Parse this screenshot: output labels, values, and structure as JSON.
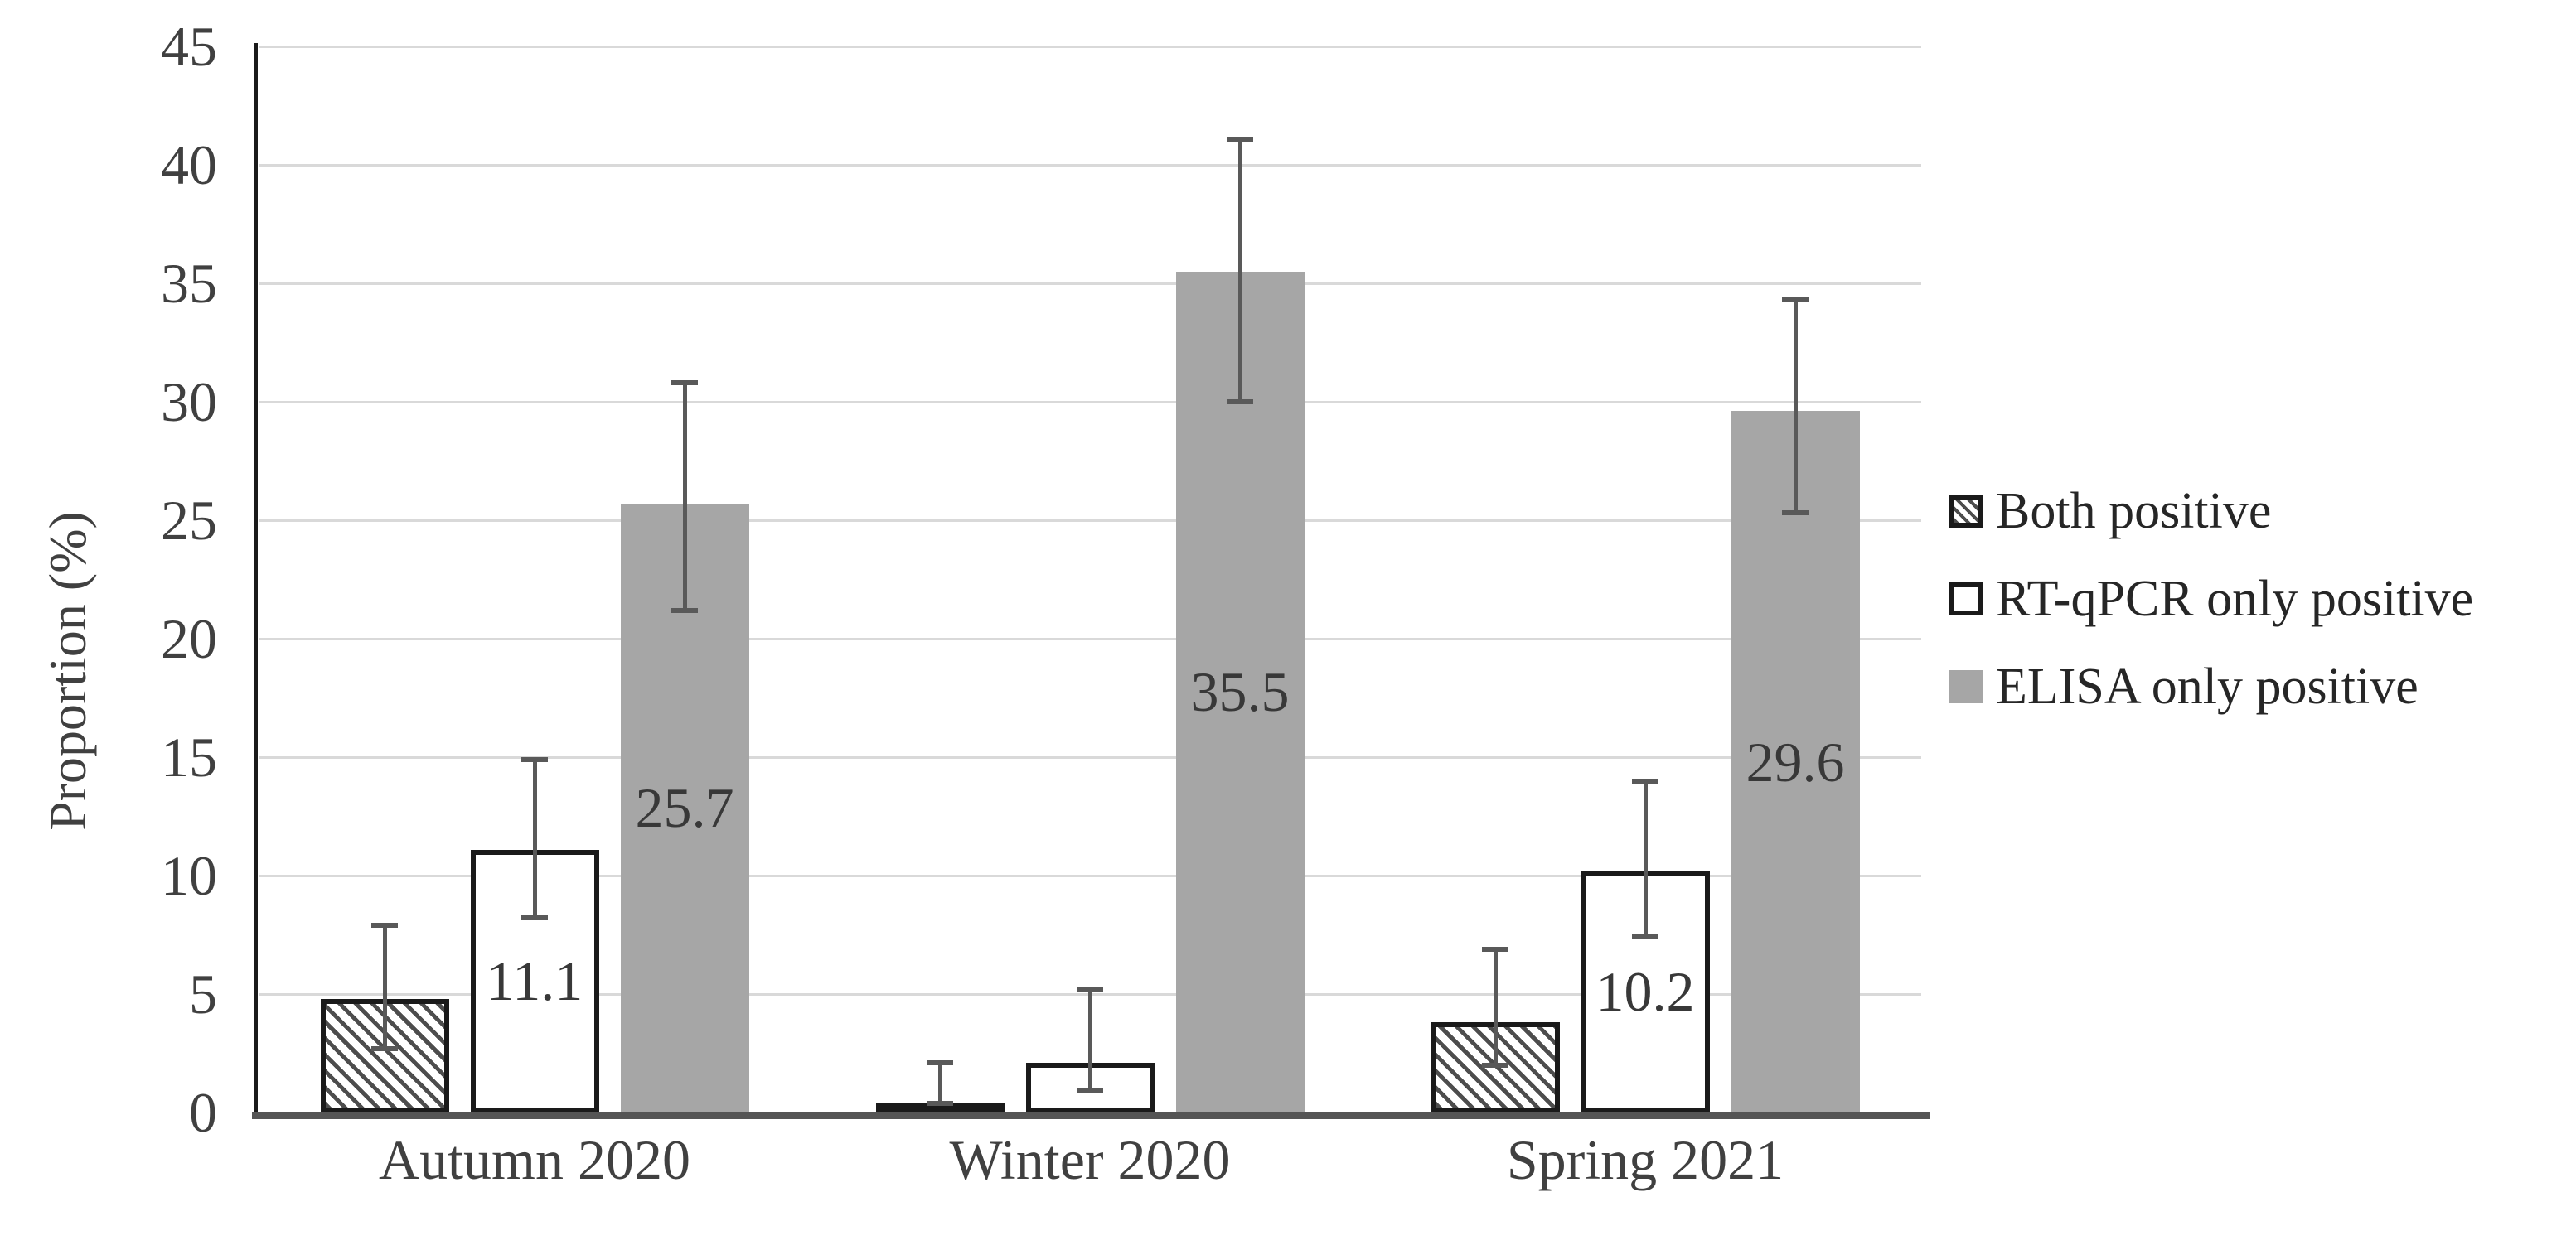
{
  "chart_data": {
    "type": "bar",
    "title": "",
    "xlabel": "",
    "ylabel": "Proportion (%)",
    "ylim": [
      0,
      45
    ],
    "ytick_step": 5,
    "yticks": [
      0,
      5,
      10,
      15,
      20,
      25,
      30,
      35,
      40,
      45
    ],
    "grid": "horizontal",
    "legend_position": "right",
    "categories": [
      "Autumn 2020",
      "Winter 2020",
      "Spring 2021"
    ],
    "series": [
      {
        "name": "Both positive",
        "pattern": "diagonal-hatch",
        "values": [
          4.8,
          0.4,
          3.8
        ],
        "err_low": [
          2.7,
          0.4,
          2.0
        ],
        "err_high": [
          7.9,
          2.1,
          6.9
        ],
        "data_labels": [
          "",
          "",
          ""
        ]
      },
      {
        "name": "RT-qPCR only positive",
        "pattern": "white",
        "values": [
          11.1,
          2.1,
          10.2
        ],
        "err_low": [
          8.2,
          0.9,
          7.4
        ],
        "err_high": [
          14.9,
          5.2,
          14.0
        ],
        "data_labels": [
          "11.1",
          "",
          "10.2"
        ]
      },
      {
        "name": "ELISA only positive",
        "pattern": "solid-gray",
        "values": [
          25.7,
          35.5,
          29.6
        ],
        "err_low": [
          21.2,
          30.0,
          25.3
        ],
        "err_high": [
          30.8,
          41.1,
          34.3
        ],
        "data_labels": [
          "25.7",
          "35.5",
          "29.6"
        ]
      }
    ],
    "colors": {
      "background": "#ffffff",
      "bar_gray": "#a6a6a6",
      "bar_border": "#1a1a1a",
      "hatch": "#4d4d4d",
      "error_bar": "#595959",
      "gridline": "#d9d9d9",
      "axis_x": "#555555",
      "axis_y": "#1a1a1a",
      "tick_label": "#404040",
      "data_label": "#383838",
      "legend_text": "#262626"
    }
  }
}
